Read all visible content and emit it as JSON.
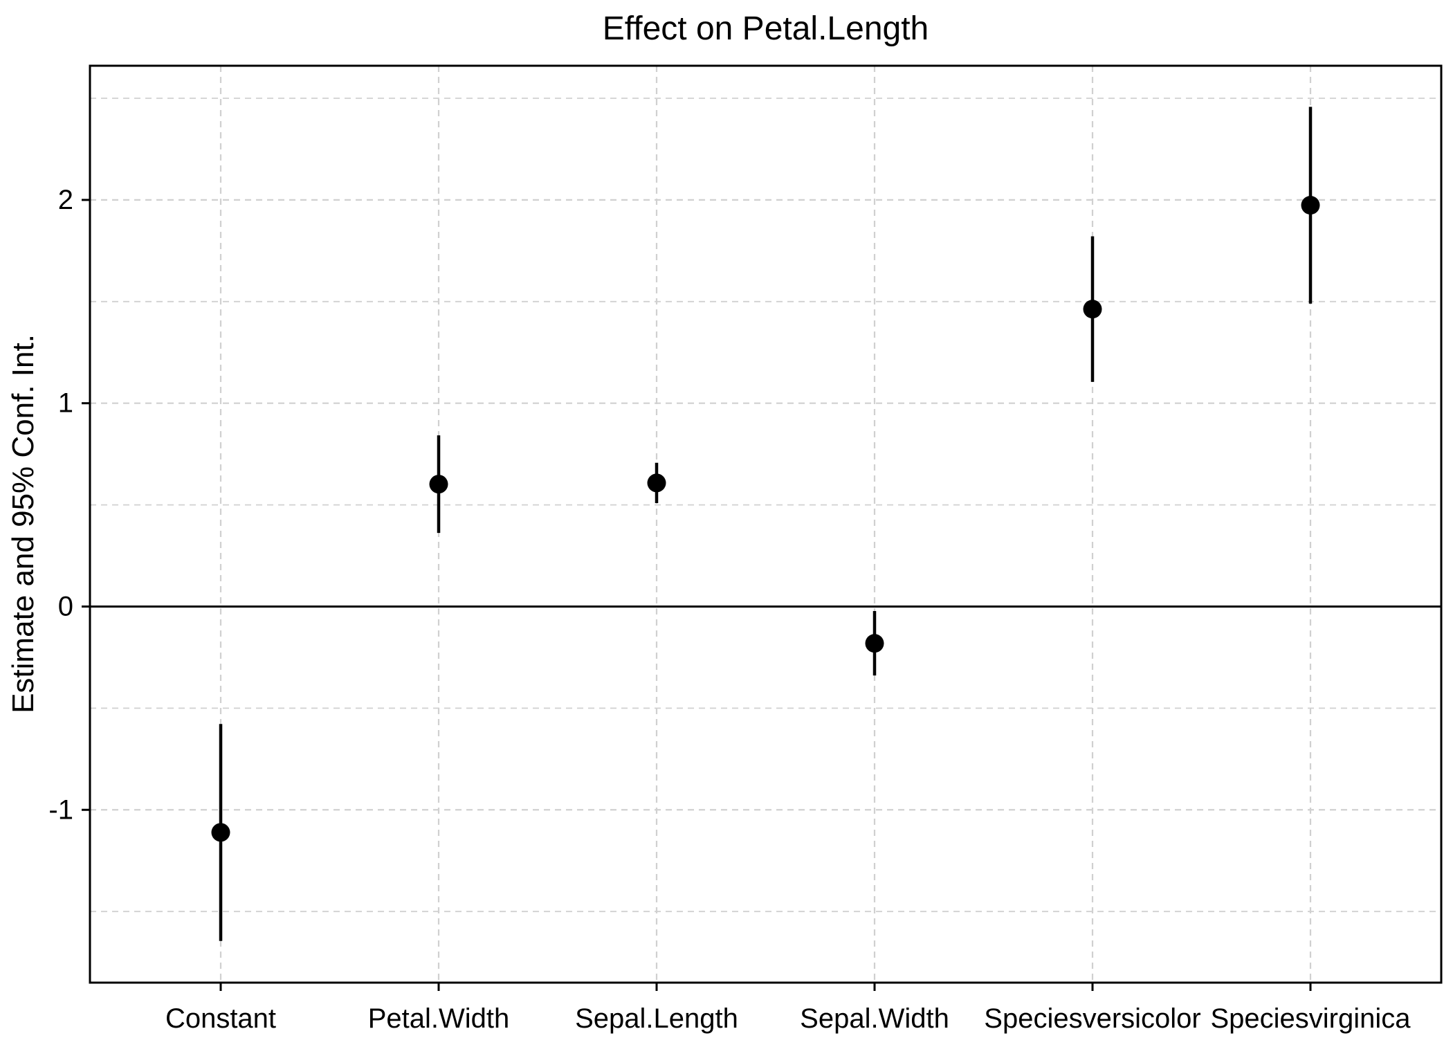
{
  "chart_data": {
    "type": "scatter",
    "subtype": "coefficient-errorbar",
    "title": "Effect on Petal.Length",
    "xlabel": "",
    "ylabel": "Estimate and 95% Conf. Int.",
    "points": [
      {
        "label": "Constant",
        "estimate": -1.111,
        "ci_lower": -1.645,
        "ci_upper": -0.578
      },
      {
        "label": "Petal.Width",
        "estimate": 0.602,
        "ci_lower": 0.362,
        "ci_upper": 0.842
      },
      {
        "label": "Sepal.Length",
        "estimate": 0.608,
        "ci_lower": 0.509,
        "ci_upper": 0.707
      },
      {
        "label": "Sepal.Width",
        "estimate": -0.181,
        "ci_lower": -0.339,
        "ci_upper": -0.022
      },
      {
        "label": "Speciesversicolor",
        "estimate": 1.463,
        "ci_lower": 1.105,
        "ci_upper": 1.821
      },
      {
        "label": "Speciesvirginica",
        "estimate": 1.974,
        "ci_lower": 1.49,
        "ci_upper": 2.458
      }
    ],
    "ylim": [
      -1.85,
      2.66
    ],
    "yticks": [
      2,
      1,
      0,
      -1
    ],
    "yticks_minor": [
      2.5,
      1.5,
      0.5,
      -0.5,
      -1.5
    ],
    "zero_line": 0,
    "grid": "dashed",
    "legend": "none",
    "colors": {
      "point": "#000000",
      "error_bar": "#000000",
      "grid": "#d0d0d0",
      "axis": "#000000",
      "zero_line": "#000000",
      "background": "#ffffff"
    }
  }
}
